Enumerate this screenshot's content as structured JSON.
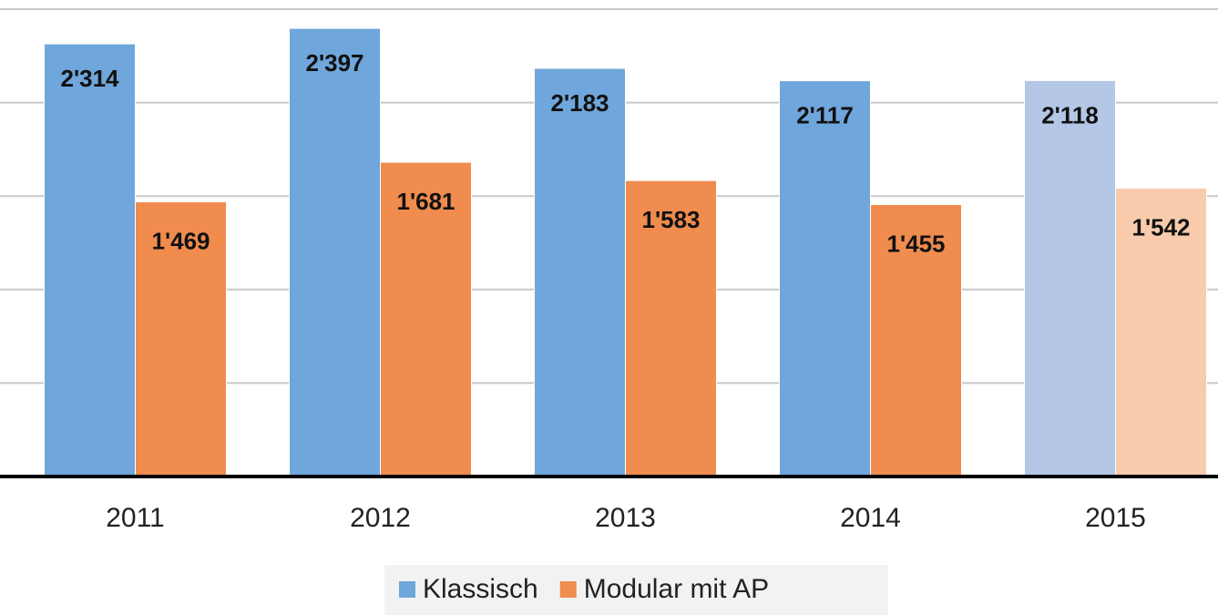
{
  "chart_data": {
    "type": "bar",
    "categories": [
      "2011",
      "2012",
      "2013",
      "2014",
      "2015"
    ],
    "series": [
      {
        "name": "Klassisch",
        "color": "#6fa6db",
        "colors": [
          "#6fa6db",
          "#6fa6db",
          "#6fa6db",
          "#6fa6db",
          "#b4c7e7"
        ],
        "values": [
          2314,
          2397,
          2183,
          2117,
          2118
        ],
        "value_labels": [
          "2'314",
          "2'397",
          "2'183",
          "2'117",
          "2'118"
        ]
      },
      {
        "name": "Modular mit AP",
        "color": "#ef8c4e",
        "colors": [
          "#ef8c4e",
          "#ef8c4e",
          "#ef8c4e",
          "#ef8c4e",
          "#f8cbad"
        ],
        "values": [
          1469,
          1681,
          1583,
          1455,
          1542
        ],
        "value_labels": [
          "1'469",
          "1'681",
          "1'583",
          "1'455",
          "1'542"
        ]
      }
    ],
    "ylim": [
      0,
      2500
    ],
    "yticks": [
      0,
      500,
      1000,
      1500,
      2000,
      2500
    ],
    "grid": true,
    "legend": "bottom"
  }
}
